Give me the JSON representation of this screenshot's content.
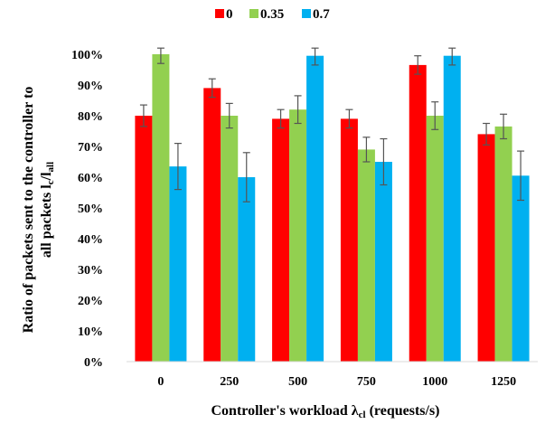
{
  "chart_data": {
    "type": "bar",
    "categories": [
      "0",
      "250",
      "500",
      "750",
      "1000",
      "1250"
    ],
    "series": [
      {
        "name": "0",
        "color": "#ff0000",
        "values": [
          80,
          89,
          79,
          79,
          96.5,
          74
        ],
        "errors": [
          3.5,
          3,
          3,
          3,
          3,
          3.5
        ]
      },
      {
        "name": "0.35",
        "color": "#92d050",
        "values": [
          100,
          80,
          82,
          69,
          80,
          76.5
        ],
        "errors": [
          3,
          4,
          4.5,
          4,
          4.5,
          4
        ]
      },
      {
        "name": "0.7",
        "color": "#00b0f0",
        "values": [
          63.5,
          60,
          99.5,
          65,
          99.5,
          60.5
        ],
        "errors": [
          7.5,
          8,
          3,
          7.5,
          3,
          8
        ]
      }
    ],
    "ylim": [
      0,
      100
    ],
    "ytick_step": 10,
    "ytick_labels": [
      "0%",
      "10%",
      "20%",
      "30%",
      "40%",
      "50%",
      "60%",
      "70%",
      "80%",
      "90%",
      "100%"
    ],
    "grid": false,
    "legend_position": "top",
    "xlabel": {
      "prefix": "Controller's workload  ",
      "symbol": "λ",
      "subscript": "cl",
      "suffix": " (requests/s)"
    },
    "ylabel": {
      "line1": "Ratio of packets sent to the controller to",
      "line2_prefix": "all packets  ",
      "l1": "l",
      "l1_sub": "c",
      "slash": "/",
      "l2": "l",
      "l2_sub": "all"
    }
  }
}
